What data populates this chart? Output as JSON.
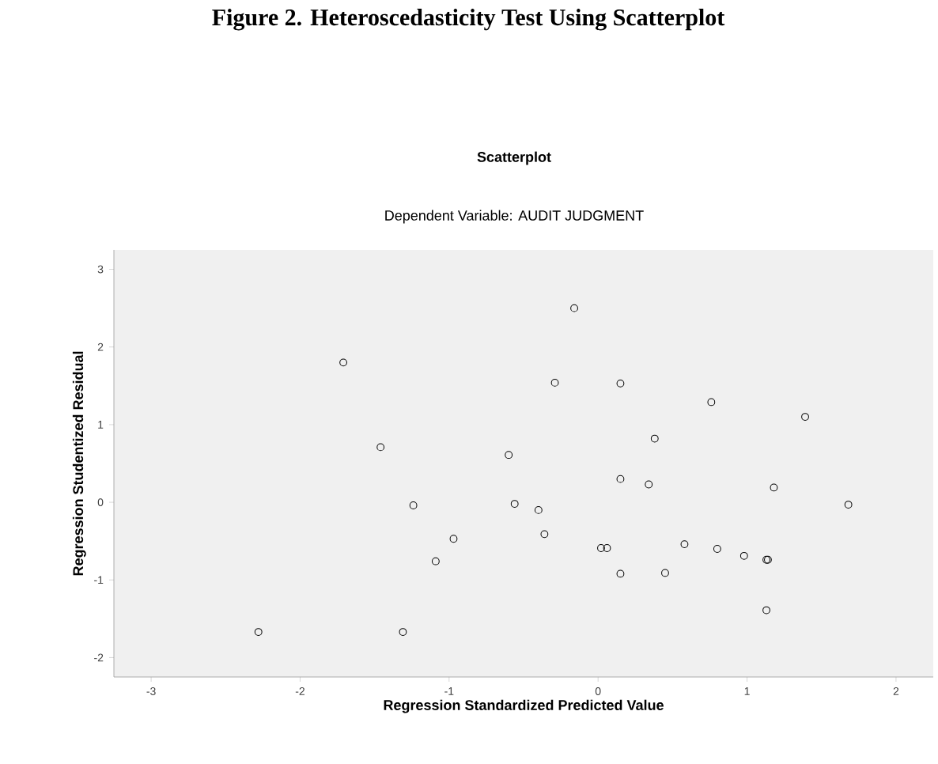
{
  "chart_data": {
    "type": "scatter",
    "title": "Scatterplot",
    "subtitle": "Dependent Variable: AUDIT JUDGMENT",
    "xlabel": "Regression Standardized Predicted Value",
    "ylabel": "Regression Studentized Residual",
    "annotations": [
      "Figure 2. Heteroscedasticity Test Using Scatterplot"
    ],
    "xlim": [
      -3.25,
      2.25
    ],
    "ylim": [
      -2.25,
      3.25
    ],
    "xticks": [
      -3,
      -2,
      -1,
      0,
      1,
      2
    ],
    "yticks": [
      -2,
      -1,
      0,
      1,
      2,
      3
    ],
    "grid": false,
    "marker": "circle",
    "color": "#000000",
    "x": [
      -2.28,
      -1.71,
      -1.46,
      -1.24,
      -1.09,
      -0.97,
      -1.31,
      -0.16,
      -0.29,
      0.15,
      0.76,
      1.39,
      0.38,
      -0.6,
      0.15,
      0.34,
      1.18,
      -0.56,
      -0.4,
      1.68,
      -0.36,
      0.02,
      0.06,
      0.58,
      0.8,
      0.98,
      1.13,
      1.14,
      0.15,
      0.45,
      1.13
    ],
    "values": [
      -1.67,
      1.8,
      0.71,
      -0.04,
      -0.76,
      -0.47,
      -1.67,
      2.5,
      1.54,
      1.53,
      1.29,
      1.1,
      0.82,
      0.61,
      0.3,
      0.23,
      0.19,
      -0.02,
      -0.1,
      -0.03,
      -0.41,
      -0.59,
      -0.59,
      -0.54,
      -0.6,
      -0.69,
      -0.74,
      -0.74,
      -0.92,
      -0.91,
      -1.39
    ]
  }
}
